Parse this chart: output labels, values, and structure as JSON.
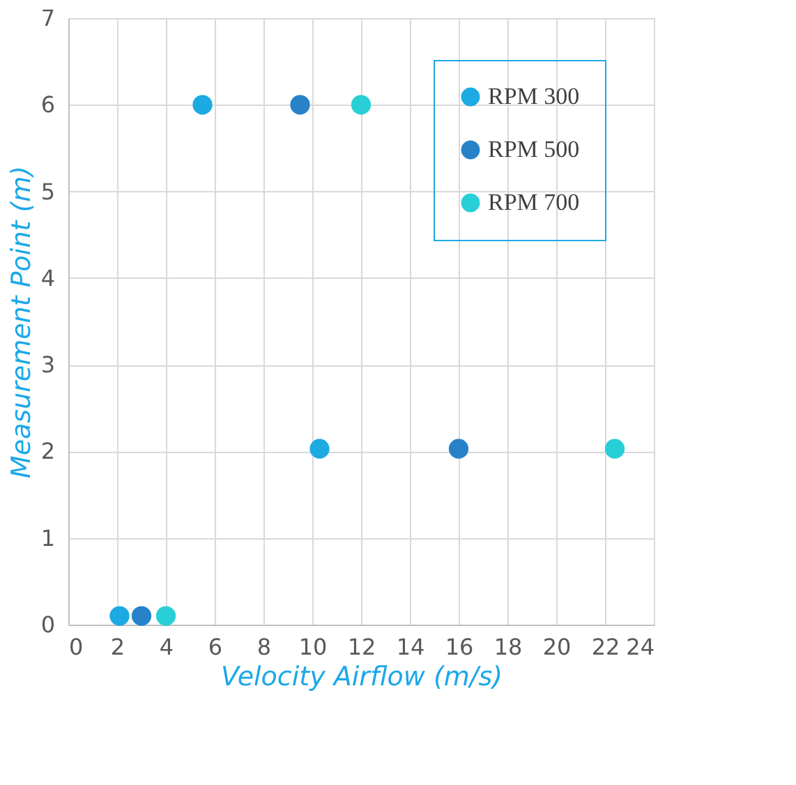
{
  "chart_data": {
    "type": "scatter",
    "xlabel": "Velocity Airflow (m/s)",
    "ylabel": "Measurement Point (m)",
    "series": [
      {
        "name": "RPM 300",
        "color": "#1caae2",
        "x": [
          2.1,
          10.3,
          5.5
        ],
        "values": [
          0.1,
          2.03,
          6
        ]
      },
      {
        "name": "RPM 500",
        "color": "#2782c8",
        "x": [
          3,
          16,
          9.5
        ],
        "values": [
          0.1,
          2.03,
          6
        ]
      },
      {
        "name": "RPM 700",
        "color": "#29cfd6",
        "x": [
          4,
          22.4,
          12
        ],
        "values": [
          0.1,
          2.03,
          6
        ]
      }
    ],
    "xlim": [
      0,
      24
    ],
    "xticks": [
      0,
      2,
      4,
      6,
      8,
      10,
      12,
      14,
      16,
      18,
      20,
      22,
      24
    ],
    "ylim": [
      0,
      7
    ],
    "yticks": [
      0,
      1,
      2,
      3,
      4,
      5,
      6,
      7
    ],
    "grid": true,
    "legend": "top right",
    "marker": "circle"
  }
}
